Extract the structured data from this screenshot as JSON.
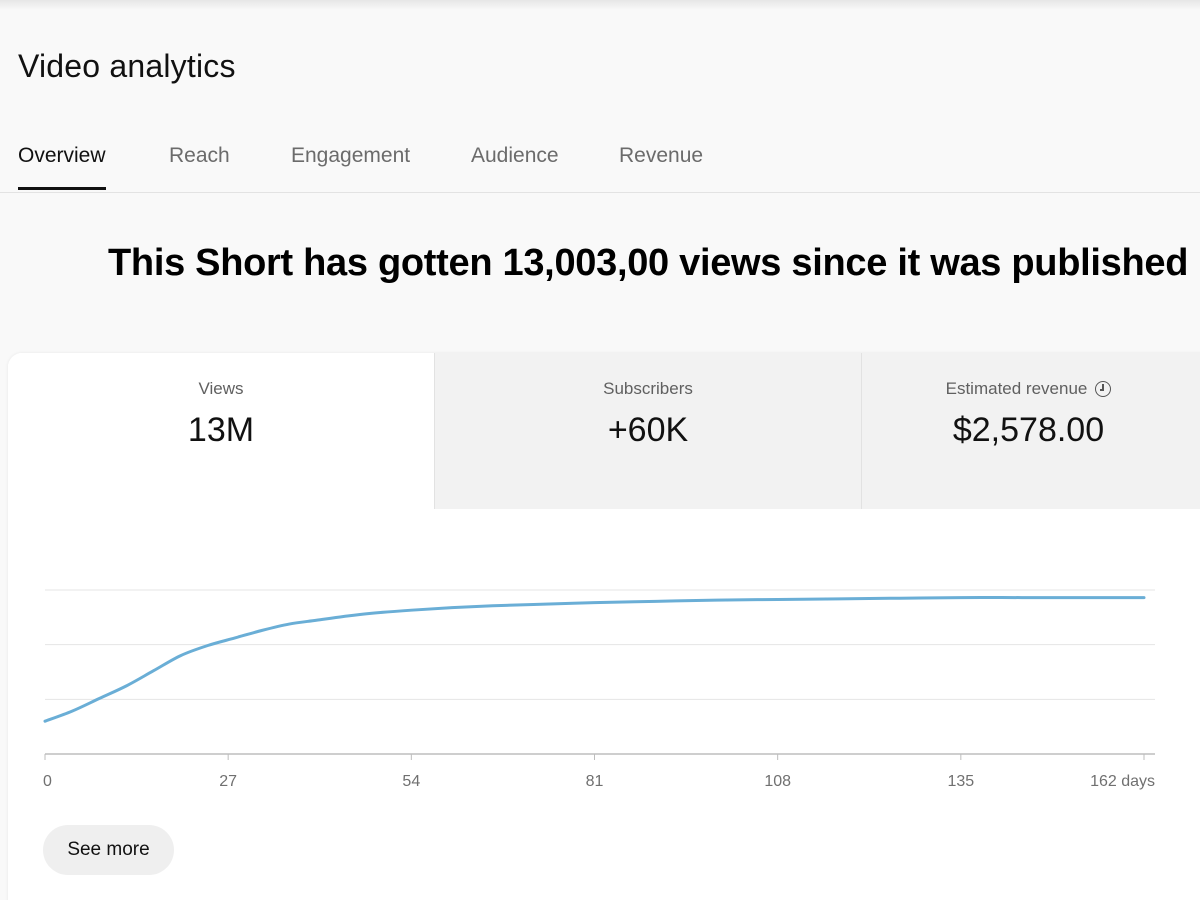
{
  "page": {
    "title": "Video analytics"
  },
  "tabs": [
    {
      "label": "Overview",
      "active": true
    },
    {
      "label": "Reach",
      "active": false
    },
    {
      "label": "Engagement",
      "active": false
    },
    {
      "label": "Audience",
      "active": false
    },
    {
      "label": "Revenue",
      "active": false
    }
  ],
  "headline": "This Short has gotten 13,003,00 views since it was published",
  "metrics": [
    {
      "label": "Views",
      "value": "13M"
    },
    {
      "label": "Subscribers",
      "value": "+60K"
    },
    {
      "label": "Estimated revenue",
      "value": "$2,578.00",
      "icon": "clock-icon"
    }
  ],
  "actions": {
    "see_more": "See more"
  },
  "colors": {
    "line": "#6aaed6",
    "grid": "#e5e5e5",
    "axis": "#bdbdbd"
  },
  "chart_data": {
    "type": "line",
    "title": "",
    "xlabel": "",
    "ylabel": "",
    "x_ticks": [
      "0",
      "27",
      "54",
      "81",
      "108",
      "135",
      "162 days"
    ],
    "xlim": [
      0,
      162
    ],
    "ylim": [
      0,
      13
    ],
    "grid": true,
    "series": [
      {
        "name": "Views",
        "x": [
          0,
          4,
          8,
          12,
          16,
          20,
          24,
          28,
          32,
          36,
          40,
          44,
          48,
          54,
          60,
          66,
          72,
          81,
          90,
          99,
          108,
          117,
          126,
          135,
          144,
          153,
          162
        ],
        "y": [
          2.6,
          3.4,
          4.4,
          5.4,
          6.6,
          7.8,
          8.6,
          9.2,
          9.8,
          10.3,
          10.6,
          10.9,
          11.15,
          11.4,
          11.6,
          11.75,
          11.85,
          12.0,
          12.1,
          12.2,
          12.25,
          12.3,
          12.35,
          12.4,
          12.4,
          12.4,
          12.4
        ]
      }
    ]
  }
}
